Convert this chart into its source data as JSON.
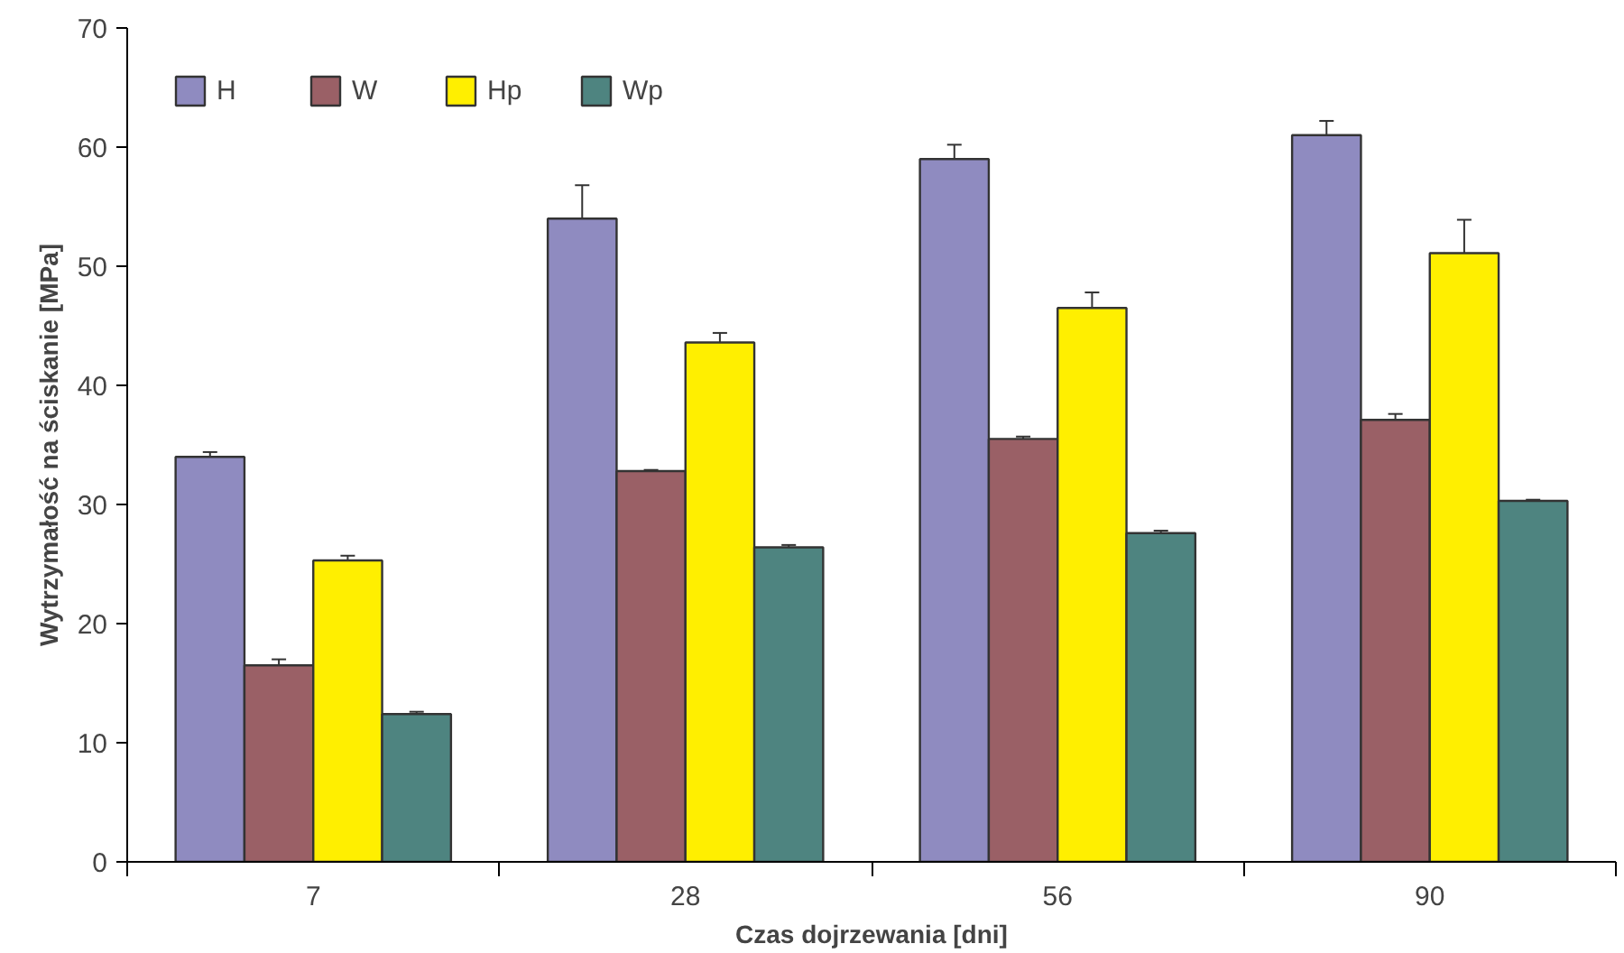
{
  "chart_data": {
    "type": "bar",
    "xlabel": "Czas dojrzewania [dni]",
    "ylabel": "Wytrzymałość na ściskanie [MPa]",
    "categories": [
      "7",
      "28",
      "56",
      "90"
    ],
    "series": [
      {
        "name": "H",
        "color": "#8f8bc0",
        "values": [
          34.0,
          54.0,
          59.0,
          61.0
        ],
        "errors": [
          0.4,
          2.8,
          1.2,
          1.2
        ]
      },
      {
        "name": "W",
        "color": "#9a6066",
        "values": [
          16.5,
          32.8,
          35.5,
          37.1
        ],
        "errors": [
          0.5,
          0.1,
          0.2,
          0.5
        ]
      },
      {
        "name": "Hp",
        "color": "#ffef00",
        "values": [
          25.3,
          43.6,
          46.5,
          51.1
        ],
        "errors": [
          0.4,
          0.8,
          1.3,
          2.8
        ]
      },
      {
        "name": "Wp",
        "color": "#4e8480",
        "values": [
          12.4,
          26.4,
          27.6,
          30.3
        ],
        "errors": [
          0.2,
          0.2,
          0.2,
          0.1
        ]
      }
    ],
    "ylim": [
      0,
      70
    ],
    "yticks": [
      0,
      10,
      20,
      30,
      40,
      50,
      60,
      70
    ],
    "grid": false,
    "legend": "top left"
  }
}
